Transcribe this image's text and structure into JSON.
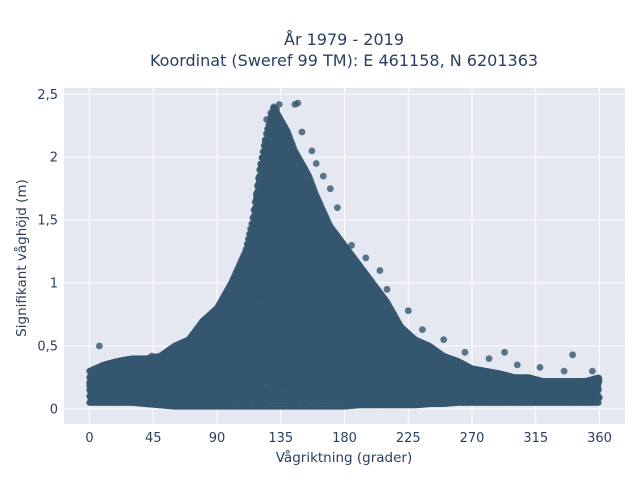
{
  "chart_data": {
    "type": "scatter",
    "title_line1": "År 1979 - 2019",
    "title_line2": "Koordinat (Sweref 99 TM): E 461158, N 6201363",
    "xlabel": "Vågriktning (grader)",
    "ylabel": "Signifikant våghöjd (m)",
    "xlim": [
      -18,
      378
    ],
    "ylim": [
      -0.12,
      2.55
    ],
    "x_ticks": [
      0,
      45,
      90,
      135,
      180,
      225,
      270,
      315,
      360
    ],
    "x_tick_labels": [
      "0",
      "45",
      "90",
      "135",
      "180",
      "225",
      "270",
      "315",
      "360"
    ],
    "y_ticks": [
      0,
      0.5,
      1,
      1.5,
      2,
      2.5
    ],
    "y_tick_labels": [
      "0",
      "0,5",
      "1",
      "1,5",
      "2",
      "2,5"
    ],
    "grid": true,
    "legend": "none",
    "marker_color": "#34566f",
    "plot_background": "#e5e8f1",
    "grid_color": "#ffffff",
    "envelope": {
      "direction": [
        0,
        10,
        20,
        30,
        40,
        50,
        60,
        70,
        80,
        90,
        100,
        110,
        115,
        120,
        125,
        130,
        135,
        140,
        145,
        150,
        155,
        160,
        170,
        180,
        190,
        200,
        210,
        220,
        230,
        240,
        250,
        260,
        270,
        280,
        290,
        300,
        310,
        320,
        330,
        340,
        350,
        360
      ],
      "min_height": [
        0.05,
        0.05,
        0.05,
        0.05,
        0.04,
        0.03,
        0.02,
        0.02,
        0.02,
        0.02,
        0.02,
        0.02,
        0.02,
        0.02,
        0.02,
        0.02,
        0.02,
        0.02,
        0.02,
        0.02,
        0.02,
        0.02,
        0.02,
        0.02,
        0.03,
        0.03,
        0.03,
        0.03,
        0.03,
        0.04,
        0.04,
        0.05,
        0.05,
        0.05,
        0.05,
        0.05,
        0.05,
        0.05,
        0.05,
        0.05,
        0.05,
        0.05
      ],
      "max_height": [
        0.3,
        0.35,
        0.38,
        0.4,
        0.4,
        0.42,
        0.5,
        0.55,
        0.7,
        0.8,
        1.0,
        1.25,
        1.5,
        1.9,
        2.2,
        2.4,
        2.3,
        2.2,
        2.05,
        1.95,
        1.85,
        1.7,
        1.45,
        1.3,
        1.15,
        1.0,
        0.85,
        0.65,
        0.55,
        0.5,
        0.42,
        0.38,
        0.32,
        0.3,
        0.28,
        0.25,
        0.25,
        0.22,
        0.22,
        0.22,
        0.22,
        0.25
      ]
    },
    "notable_points": {
      "x": [
        7,
        14,
        25,
        44,
        55,
        65,
        93,
        125,
        128,
        130,
        132,
        134,
        145,
        147,
        150,
        157,
        160,
        165,
        170,
        175,
        185,
        195,
        205,
        210,
        225,
        235,
        250,
        265,
        282,
        293,
        302,
        318,
        335,
        341,
        355
      ],
      "y": [
        0.5,
        0.35,
        0.38,
        0.42,
        0.45,
        0.52,
        0.75,
        2.3,
        2.35,
        2.4,
        2.38,
        2.42,
        2.42,
        2.43,
        2.2,
        2.05,
        1.95,
        1.85,
        1.75,
        1.6,
        1.3,
        1.2,
        1.1,
        0.95,
        0.78,
        0.63,
        0.55,
        0.45,
        0.4,
        0.45,
        0.35,
        0.33,
        0.3,
        0.43,
        0.3
      ]
    }
  }
}
